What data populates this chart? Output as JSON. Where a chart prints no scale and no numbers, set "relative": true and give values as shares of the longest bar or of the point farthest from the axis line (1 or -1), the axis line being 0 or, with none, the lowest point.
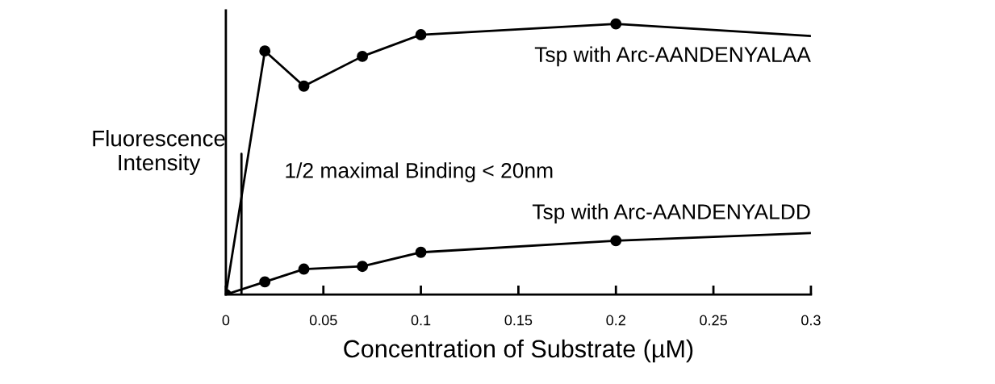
{
  "chart_data": {
    "type": "line",
    "relative": true,
    "xlabel": "Concentration of Substrate (µM)",
    "ylabel": "Fluorescence\nIntensity",
    "xlim": [
      0,
      0.3
    ],
    "xticks": [
      0,
      0.05,
      0.1,
      0.15,
      0.2,
      0.25,
      0.3
    ],
    "marker": "circle",
    "line_style": "solid",
    "grid": false,
    "legend": false,
    "annotations": [
      "1/2 maximal Binding < 20nm"
    ],
    "series": [
      {
        "name": "Tsp with Arc-AANDENYALAA",
        "color": "#000000",
        "x": [
          0,
          0.02,
          0.04,
          0.07,
          0.1,
          0.2
        ],
        "values": [
          0,
          0.9,
          0.77,
          0.88,
          0.96,
          1.0
        ]
      },
      {
        "type": "line",
        "marker": "none",
        "color": "#000000",
        "x": [
          0.2,
          0.3
        ],
        "values": [
          1.0,
          0.955
        ]
      },
      {
        "name": "Tsp with Arc-AANDENYALDD",
        "color": "#000000",
        "x": [
          0,
          0.02,
          0.04,
          0.07,
          0.1,
          0.2
        ],
        "values": [
          0,
          0.047,
          0.094,
          0.104,
          0.156,
          0.199
        ]
      },
      {
        "type": "line",
        "marker": "none",
        "color": "#000000",
        "x": [
          0.2,
          0.3
        ],
        "values": [
          0.199,
          0.227
        ]
      },
      {
        "type": "line",
        "marker": "none",
        "color": "#000000",
        "x": [
          0.008,
          0.008
        ],
        "values": [
          0,
          0.52
        ]
      }
    ]
  }
}
